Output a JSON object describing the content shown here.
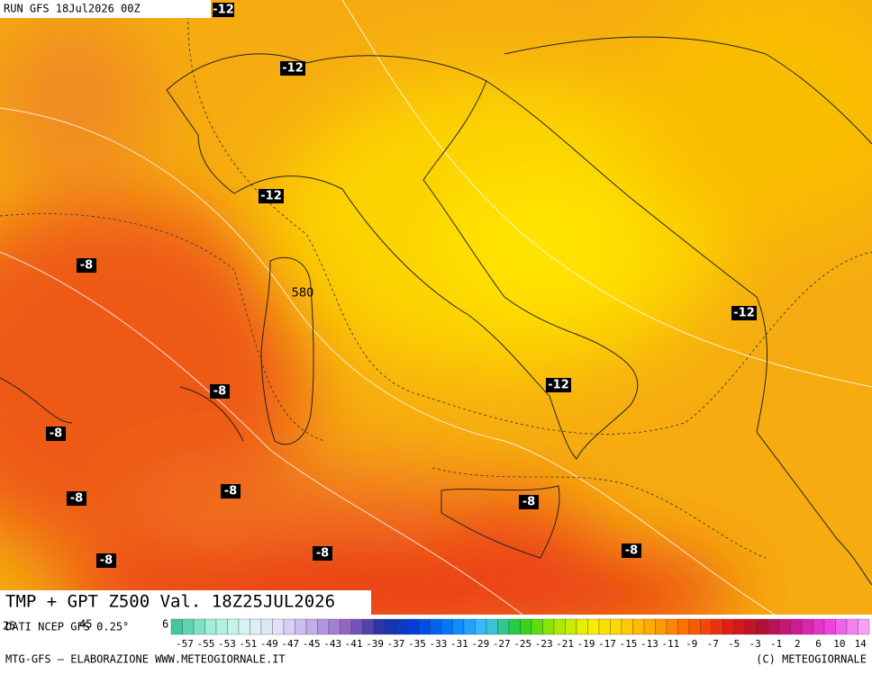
{
  "header": {
    "run": "RUN GFS 18Jul2026 00Z",
    "title": "TMP + GPT Z500 Val. 18Z25JUL2026",
    "source": "DATI NCEP GFS 0.25°",
    "cut_labels": [
      "25",
      "45",
      "6"
    ]
  },
  "contour_labels": [
    "-12",
    "-12",
    "-12",
    "-12",
    "-12",
    "-8",
    "-8",
    "-8",
    "-8",
    "-8",
    "-8",
    "-8",
    "-8",
    "-8",
    "580"
  ],
  "colorbar": {
    "labels": [
      -57,
      -55,
      -53,
      -51,
      -49,
      -47,
      -45,
      -43,
      -41,
      -39,
      -37,
      -35,
      -33,
      -31,
      -29,
      -27,
      -25,
      -23,
      -21,
      -19,
      -17,
      -15,
      -13,
      -11,
      -9,
      -7,
      -5,
      -3,
      -1,
      2,
      6,
      10,
      14
    ]
  },
  "footer": {
    "left": "MTG-GFS — ELABORAZIONE WWW.METEOGIORNALE.IT",
    "right": "(C) METEOGIORNALE"
  }
}
